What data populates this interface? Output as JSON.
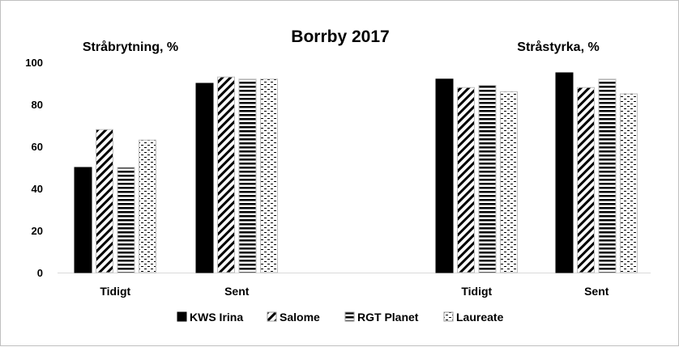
{
  "chart_data": {
    "type": "bar",
    "title": "Borrby 2017",
    "ylim": [
      0,
      100
    ],
    "yticks": [
      0,
      20,
      40,
      60,
      80,
      100
    ],
    "grid": false,
    "legend_position": "bottom",
    "panels": [
      {
        "subtitle": "Stråbrytning, %",
        "categories": [
          "Tidigt",
          "Sent"
        ],
        "series": [
          {
            "name": "KWS Irina",
            "values": [
              50,
              90
            ]
          },
          {
            "name": "Salome",
            "values": [
              68,
              93
            ]
          },
          {
            "name": "RGT Planet",
            "values": [
              50,
              92
            ]
          },
          {
            "name": "Laureate",
            "values": [
              63,
              92
            ]
          }
        ]
      },
      {
        "subtitle": "Stråstyrka, %",
        "categories": [
          "Tidigt",
          "Sent"
        ],
        "series": [
          {
            "name": "KWS Irina",
            "values": [
              92,
              95
            ]
          },
          {
            "name": "Salome",
            "values": [
              88,
              88
            ]
          },
          {
            "name": "RGT Planet",
            "values": [
              89,
              92
            ]
          },
          {
            "name": "Laureate",
            "values": [
              86,
              85
            ]
          }
        ]
      }
    ],
    "legend": [
      {
        "name": "KWS Irina",
        "pattern": "solid"
      },
      {
        "name": "Salome",
        "pattern": "diagonal"
      },
      {
        "name": "RGT Planet",
        "pattern": "horizontal"
      },
      {
        "name": "Laureate",
        "pattern": "dotted"
      }
    ]
  }
}
